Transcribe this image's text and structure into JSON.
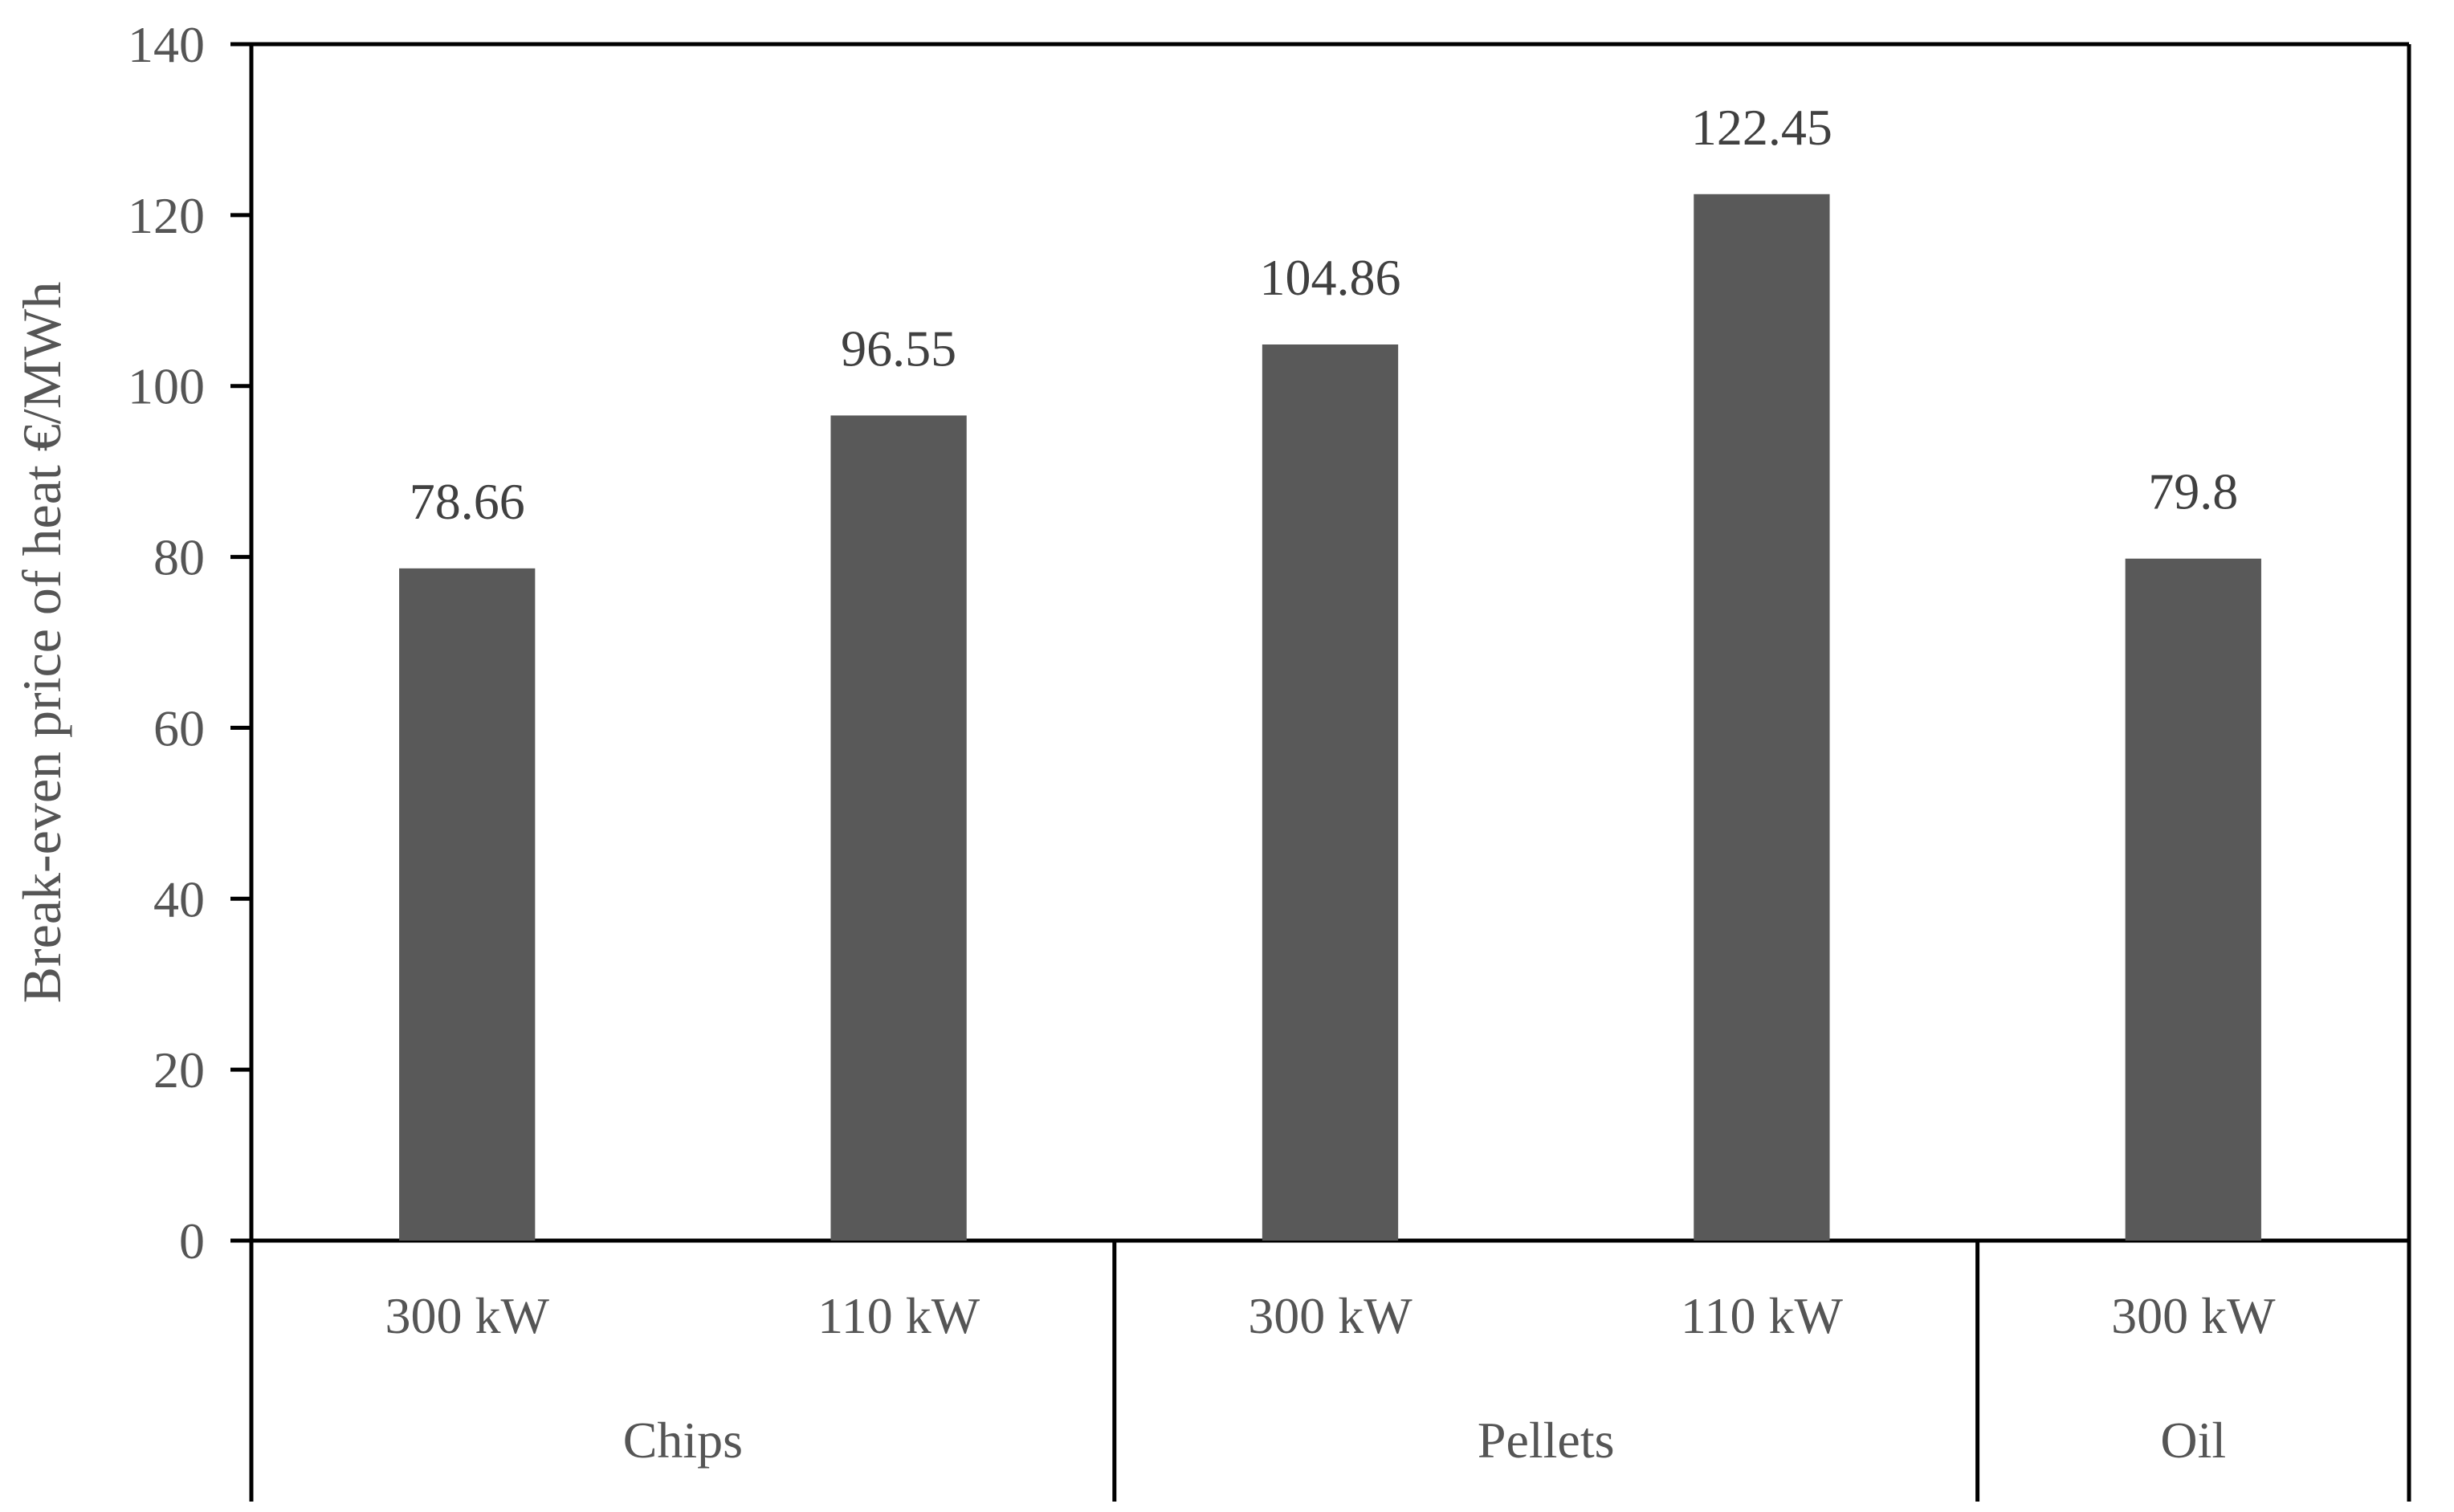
{
  "chart_data": {
    "type": "bar",
    "title": "",
    "xlabel": "",
    "ylabel": "Break-even price of heat €/MWh",
    "ylim": [
      0,
      140
    ],
    "yticks": [
      0,
      20,
      40,
      60,
      80,
      100,
      120,
      140
    ],
    "yticks_text": [
      "0",
      "20",
      "40",
      "60",
      "80",
      "100",
      "120",
      "140"
    ],
    "categories": [
      "300 kW",
      "110 kW",
      "300 kW",
      "110 kW",
      "300 kW"
    ],
    "groups": [
      {
        "name": "Chips",
        "count": 2
      },
      {
        "name": "Pellets",
        "count": 2
      },
      {
        "name": "Oil",
        "count": 1
      }
    ],
    "values": [
      78.66,
      96.55,
      104.86,
      122.45,
      79.8
    ],
    "value_labels": [
      "78.66",
      "96.55",
      "104.86",
      "122.45",
      "79.8"
    ],
    "bar_color": "#595959",
    "grid": false,
    "legend": "none"
  }
}
